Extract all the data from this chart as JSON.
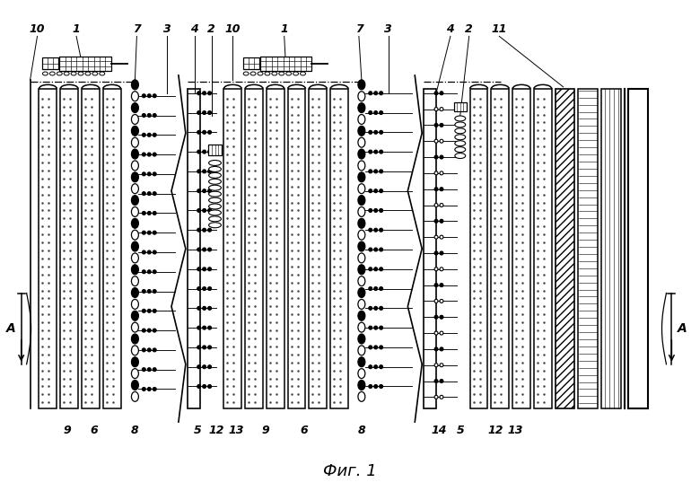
{
  "title": "Фиг. 1",
  "title_fontsize": 13,
  "fig_width": 7.8,
  "fig_height": 5.57,
  "background_color": "#ffffff",
  "top_labels_sec1": [
    [
      "10",
      38
    ],
    [
      "1",
      78
    ],
    [
      "7",
      148
    ],
    [
      "3",
      182
    ]
  ],
  "top_labels_sec2": [
    [
      "4",
      215
    ],
    [
      "2",
      232
    ],
    [
      "10",
      255
    ],
    [
      "1",
      315
    ],
    [
      "7",
      398
    ],
    [
      "3",
      432
    ]
  ],
  "top_labels_sec3": [
    [
      "4",
      505
    ],
    [
      "2",
      528
    ],
    [
      "11",
      560
    ]
  ],
  "bot_labels_sec1": [
    [
      "9",
      72
    ],
    [
      "6",
      102
    ],
    [
      "8",
      148
    ]
  ],
  "bot_labels_sec2": [
    [
      "5",
      220
    ],
    [
      "12",
      242
    ],
    [
      "13",
      262
    ],
    [
      "9",
      295
    ],
    [
      "6",
      340
    ],
    [
      "8",
      405
    ]
  ],
  "bot_labels_sec3": [
    [
      "14",
      492
    ],
    [
      "5",
      515
    ],
    [
      "12",
      552
    ],
    [
      "13",
      578
    ]
  ]
}
